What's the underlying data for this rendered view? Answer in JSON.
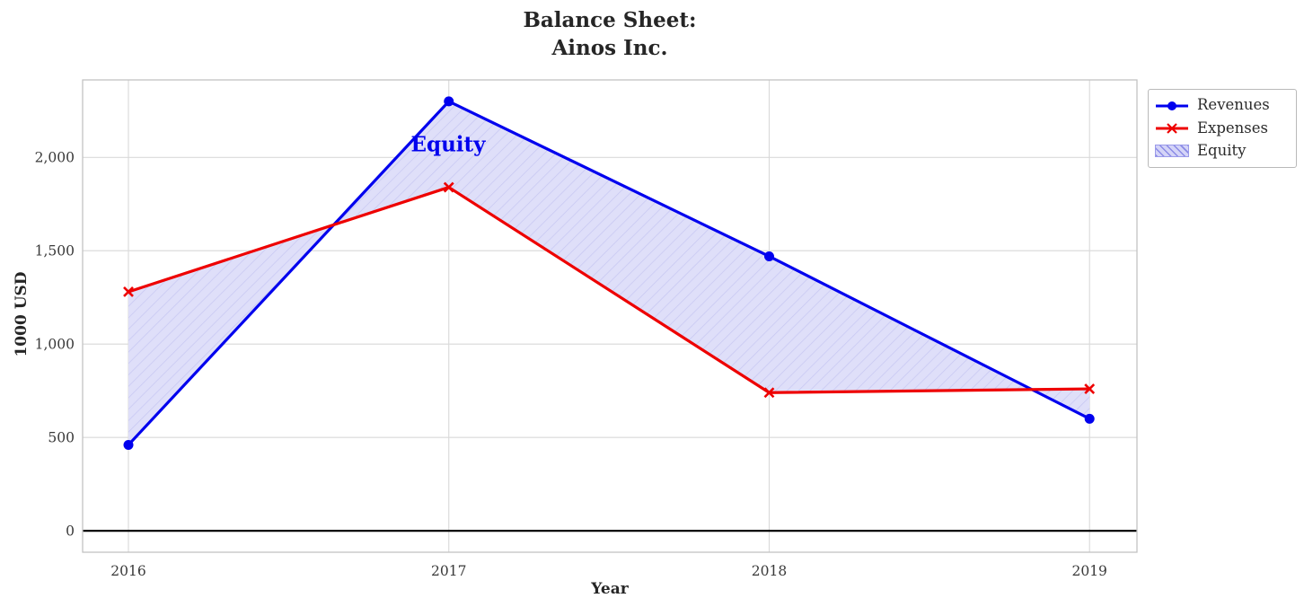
{
  "title": {
    "line1": "Balance Sheet:",
    "line2": "Ainos Inc."
  },
  "chart_data": {
    "type": "line",
    "x": [
      2016,
      2017,
      2018,
      2019
    ],
    "series": [
      {
        "name": "Revenues",
        "values": [
          460,
          2300,
          1470,
          600
        ],
        "color": "#0000ee",
        "marker": "circle"
      },
      {
        "name": "Expenses",
        "values": [
          1280,
          1840,
          740,
          760
        ],
        "color": "#ee0000",
        "marker": "x"
      }
    ],
    "fill_between": {
      "label": "Equity",
      "between": [
        "Revenues",
        "Expenses"
      ],
      "fill_color": "#dfdff9",
      "hatch_color": "#c6c6f2",
      "hatch": "///",
      "legend_fill": "#d4d4f7",
      "legend_hatch": "#8a8ae6",
      "legend_border": "#9a9aea"
    },
    "annotation": {
      "text": "Equity",
      "x": 2017,
      "y": 2070,
      "color": "#0000ee"
    },
    "title": "Balance Sheet: Ainos Inc.",
    "xlabel": "Year",
    "ylabel": "1000 USD",
    "xlim": [
      2015.857,
      2019.148
    ],
    "ylim": [
      -115,
      2415
    ],
    "xticks": {
      "values": [
        2016,
        2017,
        2018,
        2019
      ],
      "labels": [
        "2016",
        "2017",
        "2018",
        "2019"
      ]
    },
    "yticks": {
      "values": [
        0,
        500,
        1000,
        1500,
        2000
      ],
      "labels": [
        "0",
        "500",
        "1,000",
        "1,500",
        "2,000"
      ]
    },
    "grid": true,
    "zero_line": true,
    "grid_color": "#d9d9d9",
    "spine_color": "#c3c3c3",
    "tick_color": "#3a3a3a",
    "legend": {
      "position": "upper-right-outside",
      "entries": [
        "Revenues",
        "Expenses",
        "Equity"
      ]
    }
  }
}
